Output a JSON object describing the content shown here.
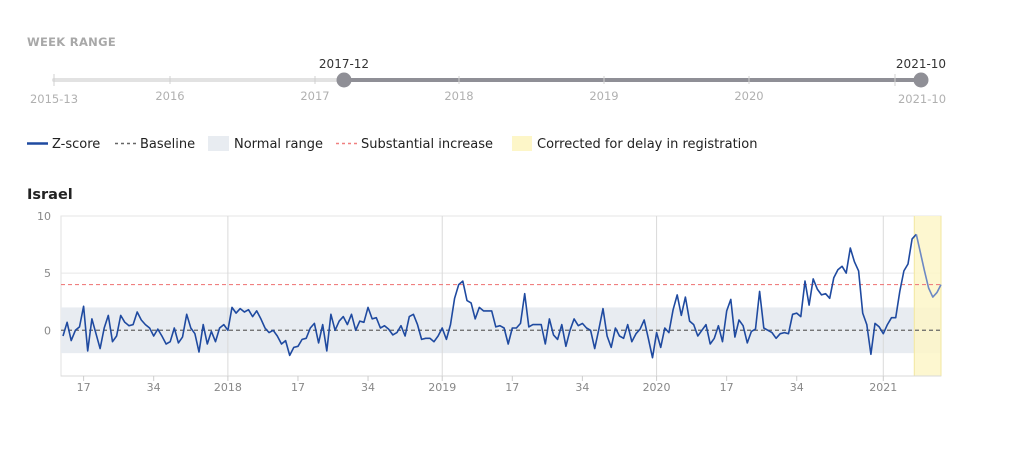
{
  "range_title": "WEEK RANGE",
  "slider": {
    "start_value": "2017-12",
    "end_value": "2021-10",
    "min_label": "2015-13",
    "max_label": "2021-10",
    "year_labels": [
      "2016",
      "2017",
      "2018",
      "2019",
      "2020"
    ]
  },
  "legend": {
    "zscore": "Z-score",
    "baseline": "Baseline",
    "normal": "Normal range",
    "substantial": "Substantial increase",
    "corrected": "Corrected for delay in registration"
  },
  "colors": {
    "line": "#1f4aa0",
    "baseline": "#666666",
    "normal_band": "#e8ecf1",
    "substantial": "#f08080",
    "corrected": "#fdf6c8",
    "slider_active": "#8f8f96",
    "slider_inactive": "#e2e2e2"
  },
  "chart_data": {
    "type": "line",
    "title": "Israel",
    "ylim": [
      -4,
      10
    ],
    "yticks": [
      0,
      5,
      10
    ],
    "normal_range": [
      -2,
      2
    ],
    "substantial_threshold": 4,
    "baseline": 0,
    "x_start": "2017-12",
    "x_end": "2021-10",
    "x_ticks": [
      {
        "label": "17",
        "week": 5
      },
      {
        "label": "34",
        "week": 22
      },
      {
        "label": "2018",
        "week": 40
      },
      {
        "label": "17",
        "week": 57
      },
      {
        "label": "34",
        "week": 74
      },
      {
        "label": "2019",
        "week": 92
      },
      {
        "label": "17",
        "week": 109
      },
      {
        "label": "34",
        "week": 126
      },
      {
        "label": "2020",
        "week": 144
      },
      {
        "label": "17",
        "week": 161
      },
      {
        "label": "34",
        "week": 178
      },
      {
        "label": "2021",
        "week": 199
      }
    ],
    "corrected_weeks": [
      207,
      210
    ],
    "series": [
      {
        "values": [
          -0.5,
          0.7,
          -0.9,
          0.0,
          0.3,
          2.1,
          -1.8,
          1.0,
          -0.3,
          -1.6,
          0.2,
          1.3,
          -1.0,
          -0.5,
          1.3,
          0.7,
          0.4,
          0.5,
          1.6,
          0.9,
          0.5,
          0.2,
          -0.5,
          0.1,
          -0.5,
          -1.2,
          -1.0,
          0.2,
          -1.1,
          -0.6,
          1.4,
          0.2,
          -0.3,
          -1.9,
          0.5,
          -1.2,
          -0.1,
          -1.0,
          0.2,
          0.5,
          0.0,
          2.0,
          1.5,
          1.9,
          1.6,
          1.8,
          1.2,
          1.7,
          1.0,
          0.2,
          -0.2,
          0.0,
          -0.5,
          -1.2,
          -0.9,
          -2.2,
          -1.5,
          -1.4,
          -0.8,
          -0.7,
          0.2,
          0.6,
          -1.1,
          0.5,
          -1.8,
          1.4,
          0.0,
          0.8,
          1.2,
          0.5,
          1.4,
          0.0,
          0.8,
          0.7,
          2.0,
          1.0,
          1.1,
          0.2,
          0.4,
          0.1,
          -0.4,
          -0.2,
          0.4,
          -0.5,
          1.2,
          1.4,
          0.5,
          -0.8,
          -0.7,
          -0.7,
          -1.0,
          -0.5,
          0.2,
          -0.8,
          0.5,
          2.8,
          4.0,
          4.3,
          2.6,
          2.4,
          1.0,
          2.0,
          1.7,
          1.7,
          1.7,
          0.3,
          0.4,
          0.2,
          -1.2,
          0.2,
          0.2,
          0.6,
          3.2,
          0.3,
          0.5,
          0.5,
          0.5,
          -1.2,
          1.0,
          -0.4,
          -0.8,
          0.5,
          -1.4,
          0.0,
          1.0,
          0.4,
          0.6,
          0.2,
          0.0,
          -1.6,
          0.1,
          1.9,
          -0.5,
          -1.5,
          0.2,
          -0.5,
          -0.7,
          0.5,
          -1.0,
          -0.3,
          0.1,
          0.9,
          -0.7,
          -2.4,
          -0.2,
          -1.5,
          0.2,
          -0.2,
          1.8,
          3.1,
          1.3,
          2.9,
          0.8,
          0.5,
          -0.5,
          0.0,
          0.5,
          -1.2,
          -0.7,
          0.4,
          -1.0,
          1.7,
          2.7,
          -0.6,
          0.9,
          0.4,
          -1.1,
          -0.1,
          0.1,
          3.4,
          0.2,
          0.0,
          -0.2,
          -0.7,
          -0.3,
          -0.2,
          -0.3,
          1.4,
          1.5,
          1.2,
          4.3,
          2.2,
          4.5,
          3.6,
          3.1,
          3.2,
          2.8,
          4.6,
          5.3,
          5.6,
          5.0,
          7.2,
          6.0,
          5.2,
          1.5,
          0.5,
          -2.1,
          0.6,
          0.3,
          -0.3,
          0.5,
          1.1,
          1.1,
          3.4,
          5.2,
          5.8,
          8.0,
          8.4,
          6.8,
          5.2,
          3.7,
          2.9,
          3.3,
          4.0
        ]
      }
    ]
  }
}
